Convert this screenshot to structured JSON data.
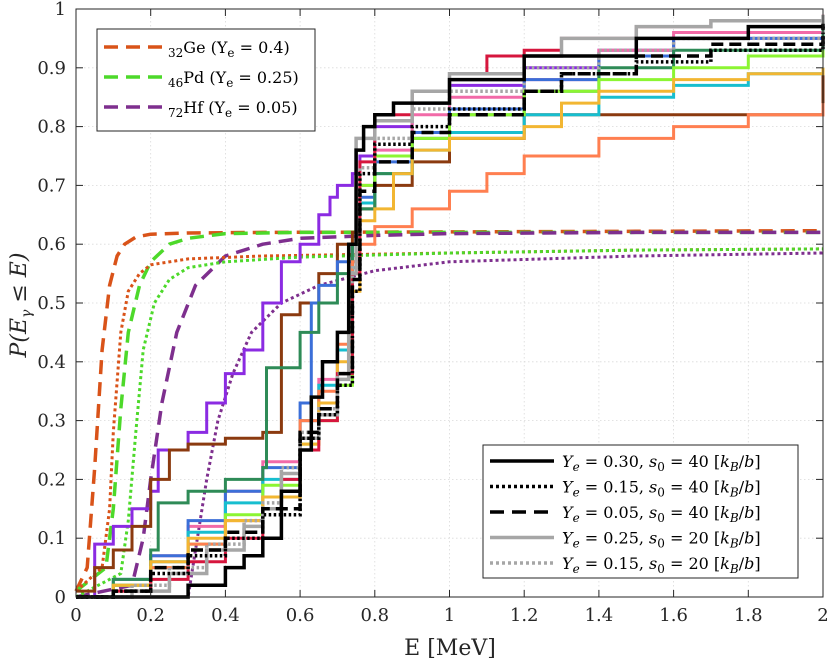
{
  "chart_data": {
    "type": "line",
    "title": "",
    "xlabel": "E [MeV]",
    "ylabel": "P(E_γ ≤ E)",
    "ylabel_parts": {
      "prefix": "P(E",
      "sub": "γ",
      "suffix": " ≤ E)"
    },
    "xlim": [
      0,
      2
    ],
    "ylim": [
      0,
      1
    ],
    "grid": true,
    "xticks": [
      0,
      0.2,
      0.4,
      0.6,
      0.8,
      1,
      1.2,
      1.4,
      1.6,
      1.8,
      2
    ],
    "xtick_labels": [
      "0",
      "0.2",
      "0.4",
      "0.6",
      "0.8",
      "1",
      "1.2",
      "1.4",
      "1.6",
      "1.8",
      "2"
    ],
    "yticks": [
      0,
      0.1,
      0.2,
      0.3,
      0.4,
      0.5,
      0.6,
      0.7,
      0.8,
      0.9,
      1
    ],
    "ytick_labels": [
      "0",
      "0.1",
      "0.2",
      "0.3",
      "0.4",
      "0.5",
      "0.6",
      "0.7",
      "0.8",
      "0.9",
      "1"
    ],
    "legends": [
      {
        "placement": "top-left",
        "entries": [
          {
            "sub": "32",
            "name": "Ge (Y",
            "name_sub": "e",
            "rest": " = 0.4)",
            "color": "#d95319",
            "style": "dashed"
          },
          {
            "sub": "46",
            "name": "Pd (Y",
            "name_sub": "e",
            "rest": " = 0.25)",
            "color": "#4dd92a",
            "style": "dashed"
          },
          {
            "sub": "72",
            "name": "Hf (Y",
            "name_sub": "e",
            "rest": " = 0.05)",
            "color": "#7e2f8e",
            "style": "dashed"
          }
        ]
      },
      {
        "placement": "bottom-right",
        "entries": [
          {
            "label": "Y_e = 0.30, s_0 = 40 [k_B/b]",
            "ye": "0.30",
            "s0": "40",
            "color": "#000000",
            "style": "solid"
          },
          {
            "label": "Y_e = 0.15, s_0 = 40 [k_B/b]",
            "ye": "0.15",
            "s0": "40",
            "color": "#000000",
            "style": "dotted"
          },
          {
            "label": "Y_e = 0.05, s_0 = 40 [k_B/b]",
            "ye": "0.05",
            "s0": "40",
            "color": "#000000",
            "style": "dashed"
          },
          {
            "label": "Y_e = 0.25, s_0 = 20 [k_B/b]",
            "ye": "0.25",
            "s0": "20",
            "color": "#a6a6a6",
            "style": "solid"
          },
          {
            "label": "Y_e = 0.15, s_0 = 20 [k_B/b]",
            "ye": "0.15",
            "s0": "20",
            "color": "#a6a6a6",
            "style": "dotted"
          }
        ]
      }
    ],
    "smooth_series": [
      {
        "name": "32Ge dashed",
        "color": "#d95319",
        "style": "dashed",
        "width": 3.5,
        "x": [
          0,
          0.03,
          0.05,
          0.07,
          0.09,
          0.11,
          0.13,
          0.16,
          0.2,
          0.3,
          0.5,
          1,
          1.5,
          2
        ],
        "y": [
          0.01,
          0.05,
          0.22,
          0.42,
          0.53,
          0.58,
          0.6,
          0.612,
          0.617,
          0.619,
          0.62,
          0.621,
          0.622,
          0.623
        ]
      },
      {
        "name": "46Pd dashed",
        "color": "#4dd92a",
        "style": "dashed",
        "width": 3.5,
        "x": [
          0,
          0.08,
          0.1,
          0.12,
          0.14,
          0.17,
          0.2,
          0.25,
          0.3,
          0.4,
          0.6,
          1,
          1.5,
          2
        ],
        "y": [
          0.01,
          0.05,
          0.15,
          0.32,
          0.45,
          0.53,
          0.57,
          0.6,
          0.61,
          0.618,
          0.62,
          0.62,
          0.62,
          0.62
        ]
      },
      {
        "name": "72Hf dashed",
        "color": "#7e2f8e",
        "style": "dashed",
        "width": 3.5,
        "x": [
          0,
          0.15,
          0.18,
          0.2,
          0.23,
          0.27,
          0.32,
          0.4,
          0.5,
          0.6,
          0.8,
          1,
          1.5,
          2
        ],
        "y": [
          0,
          0.02,
          0.1,
          0.2,
          0.33,
          0.45,
          0.53,
          0.58,
          0.6,
          0.61,
          0.615,
          0.618,
          0.62,
          0.62
        ]
      },
      {
        "name": "32Ge dotted",
        "color": "#d95319",
        "style": "dotted",
        "width": 3,
        "x": [
          0,
          0.07,
          0.09,
          0.1,
          0.12,
          0.14,
          0.17,
          0.2,
          0.3,
          0.5,
          1,
          1.5,
          2
        ],
        "y": [
          0.01,
          0.05,
          0.15,
          0.28,
          0.45,
          0.52,
          0.55,
          0.565,
          0.575,
          0.58,
          0.585,
          0.59,
          0.592
        ]
      },
      {
        "name": "46Pd dotted",
        "color": "#4dd92a",
        "style": "dotted",
        "width": 3,
        "x": [
          0,
          0.12,
          0.14,
          0.16,
          0.18,
          0.21,
          0.25,
          0.3,
          0.4,
          0.6,
          1,
          1.5,
          2
        ],
        "y": [
          0,
          0.04,
          0.13,
          0.28,
          0.42,
          0.5,
          0.54,
          0.56,
          0.57,
          0.578,
          0.585,
          0.59,
          0.592
        ]
      },
      {
        "name": "72Hf dotted",
        "color": "#7e2f8e",
        "style": "dotted",
        "width": 3,
        "x": [
          0,
          0.3,
          0.32,
          0.35,
          0.38,
          0.42,
          0.47,
          0.55,
          0.65,
          0.8,
          1,
          1.5,
          2
        ],
        "y": [
          0,
          0,
          0.08,
          0.2,
          0.3,
          0.38,
          0.45,
          0.5,
          0.53,
          0.555,
          0.57,
          0.58,
          0.585
        ]
      }
    ],
    "step_series": [
      {
        "name": "Ye=0.30 s0=40",
        "color": "#000000",
        "style": "solid",
        "width": 3.5,
        "x": [
          0,
          0.2,
          0.3,
          0.4,
          0.45,
          0.5,
          0.55,
          0.6,
          0.63,
          0.66,
          0.7,
          0.73,
          0.75,
          0.77,
          0.8,
          0.85,
          1.0,
          1.2,
          1.5,
          1.8,
          2.0
        ],
        "y": [
          0,
          0,
          0.02,
          0.05,
          0.07,
          0.1,
          0.18,
          0.25,
          0.34,
          0.4,
          0.45,
          0.6,
          0.76,
          0.8,
          0.82,
          0.84,
          0.88,
          0.92,
          0.95,
          0.97,
          0.975
        ]
      },
      {
        "name": "Ye=0.15 s0=40",
        "color": "#000000",
        "style": "dotted",
        "width": 3.5,
        "x": [
          0,
          0.1,
          0.2,
          0.3,
          0.4,
          0.5,
          0.6,
          0.65,
          0.7,
          0.74,
          0.76,
          0.8,
          0.9,
          1.0,
          1.2,
          1.3,
          1.5,
          1.7,
          2.0
        ],
        "y": [
          0,
          0.01,
          0.04,
          0.07,
          0.1,
          0.14,
          0.27,
          0.31,
          0.36,
          0.52,
          0.72,
          0.77,
          0.8,
          0.83,
          0.86,
          0.89,
          0.91,
          0.93,
          0.96
        ]
      },
      {
        "name": "Ye=0.05 s0=40",
        "color": "#000000",
        "style": "dashed",
        "width": 3.5,
        "x": [
          0,
          0.1,
          0.2,
          0.3,
          0.4,
          0.5,
          0.6,
          0.65,
          0.7,
          0.74,
          0.76,
          0.8,
          0.9,
          1.0,
          1.2,
          1.3,
          1.5,
          1.7,
          2.0
        ],
        "y": [
          0,
          0.01,
          0.05,
          0.08,
          0.11,
          0.15,
          0.28,
          0.32,
          0.38,
          0.54,
          0.69,
          0.74,
          0.79,
          0.82,
          0.86,
          0.89,
          0.92,
          0.94,
          0.97
        ]
      },
      {
        "name": "Ye=0.25 s0=20",
        "color": "#a6a6a6",
        "style": "solid",
        "width": 3.5,
        "x": [
          0,
          0.15,
          0.25,
          0.35,
          0.45,
          0.5,
          0.55,
          0.6,
          0.65,
          0.7,
          0.73,
          0.75,
          0.8,
          0.9,
          1.0,
          1.2,
          1.3,
          1.5,
          1.7,
          2.0
        ],
        "y": [
          0,
          0.01,
          0.04,
          0.08,
          0.12,
          0.15,
          0.21,
          0.27,
          0.31,
          0.37,
          0.55,
          0.78,
          0.81,
          0.86,
          0.89,
          0.92,
          0.95,
          0.97,
          0.98,
          0.99
        ]
      },
      {
        "name": "Ye=0.15 s0=20",
        "color": "#a6a6a6",
        "style": "dotted",
        "width": 3.5,
        "x": [
          0,
          0.15,
          0.25,
          0.35,
          0.45,
          0.5,
          0.55,
          0.6,
          0.65,
          0.7,
          0.74,
          0.76,
          0.8,
          0.9,
          1.0,
          1.2,
          1.4,
          1.6,
          2.0
        ],
        "y": [
          0,
          0.02,
          0.05,
          0.09,
          0.13,
          0.16,
          0.22,
          0.28,
          0.32,
          0.38,
          0.56,
          0.73,
          0.78,
          0.83,
          0.86,
          0.9,
          0.93,
          0.95,
          0.98
        ]
      },
      {
        "name": "crimson",
        "color": "#d6163d",
        "style": "solid",
        "width": 3,
        "x": [
          0,
          0.1,
          0.2,
          0.3,
          0.4,
          0.5,
          0.55,
          0.6,
          0.65,
          0.7,
          0.74,
          0.76,
          0.8,
          0.9,
          1.0,
          1.1,
          1.2,
          1.3,
          1.5,
          1.7,
          2.0
        ],
        "y": [
          0,
          0.01,
          0.03,
          0.06,
          0.1,
          0.15,
          0.2,
          0.25,
          0.3,
          0.38,
          0.55,
          0.74,
          0.82,
          0.86,
          0.89,
          0.92,
          0.93,
          0.95,
          0.97,
          0.98,
          0.99
        ]
      },
      {
        "name": "orange-yellow",
        "color": "#f2b632",
        "style": "solid",
        "width": 3,
        "x": [
          0,
          0.1,
          0.2,
          0.3,
          0.4,
          0.5,
          0.6,
          0.65,
          0.7,
          0.74,
          0.76,
          0.8,
          0.85,
          0.9,
          1.0,
          1.2,
          1.3,
          1.4,
          1.6,
          1.8,
          2.0
        ],
        "y": [
          0,
          0.02,
          0.06,
          0.1,
          0.13,
          0.17,
          0.26,
          0.33,
          0.4,
          0.52,
          0.64,
          0.66,
          0.72,
          0.76,
          0.78,
          0.8,
          0.84,
          0.86,
          0.88,
          0.89,
          0.9
        ]
      },
      {
        "name": "salmon",
        "color": "#ff7f50",
        "style": "solid",
        "width": 3,
        "x": [
          0,
          0.1,
          0.2,
          0.3,
          0.4,
          0.5,
          0.6,
          0.65,
          0.7,
          0.74,
          0.76,
          0.8,
          0.9,
          1.0,
          1.1,
          1.2,
          1.4,
          1.6,
          1.8,
          2.0
        ],
        "y": [
          0,
          0.01,
          0.05,
          0.09,
          0.13,
          0.17,
          0.3,
          0.35,
          0.43,
          0.57,
          0.6,
          0.63,
          0.66,
          0.69,
          0.72,
          0.75,
          0.78,
          0.8,
          0.82,
          0.84
        ]
      },
      {
        "name": "lime",
        "color": "#8cf532",
        "style": "solid",
        "width": 3,
        "x": [
          0,
          0.1,
          0.2,
          0.3,
          0.4,
          0.5,
          0.6,
          0.65,
          0.7,
          0.74,
          0.76,
          0.8,
          0.9,
          1.0,
          1.2,
          1.4,
          1.6,
          1.8,
          2.0
        ],
        "y": [
          0,
          0.02,
          0.05,
          0.09,
          0.14,
          0.19,
          0.26,
          0.3,
          0.36,
          0.55,
          0.7,
          0.75,
          0.78,
          0.82,
          0.86,
          0.88,
          0.9,
          0.92,
          0.93
        ]
      },
      {
        "name": "teal-green",
        "color": "#2e8b57",
        "style": "solid",
        "width": 3,
        "x": [
          0,
          0.1,
          0.2,
          0.22,
          0.3,
          0.4,
          0.5,
          0.51,
          0.6,
          0.65,
          0.7,
          0.74,
          0.76,
          0.8,
          0.9,
          1.0,
          1.2,
          1.4,
          1.6,
          2.0
        ],
        "y": [
          0,
          0.03,
          0.08,
          0.16,
          0.18,
          0.2,
          0.22,
          0.39,
          0.45,
          0.5,
          0.55,
          0.6,
          0.66,
          0.72,
          0.78,
          0.82,
          0.86,
          0.9,
          0.93,
          0.98
        ]
      },
      {
        "name": "cyan",
        "color": "#17becf",
        "style": "solid",
        "width": 3,
        "x": [
          0,
          0.1,
          0.2,
          0.3,
          0.4,
          0.5,
          0.6,
          0.65,
          0.7,
          0.74,
          0.76,
          0.8,
          0.9,
          1.0,
          1.2,
          1.4,
          1.6,
          1.8,
          2.0
        ],
        "y": [
          0,
          0.02,
          0.06,
          0.11,
          0.16,
          0.2,
          0.3,
          0.36,
          0.42,
          0.56,
          0.67,
          0.72,
          0.76,
          0.79,
          0.82,
          0.85,
          0.87,
          0.89,
          0.9
        ]
      },
      {
        "name": "blue",
        "color": "#3b6fd8",
        "style": "solid",
        "width": 3,
        "x": [
          0,
          0.1,
          0.2,
          0.3,
          0.4,
          0.5,
          0.6,
          0.63,
          0.65,
          0.7,
          0.74,
          0.76,
          0.8,
          0.9,
          1.0,
          1.2,
          1.4,
          1.6,
          2.0
        ],
        "y": [
          0,
          0.03,
          0.07,
          0.13,
          0.18,
          0.22,
          0.33,
          0.5,
          0.53,
          0.57,
          0.6,
          0.68,
          0.74,
          0.79,
          0.83,
          0.88,
          0.92,
          0.95,
          0.98
        ]
      },
      {
        "name": "pink",
        "color": "#f26aa8",
        "style": "solid",
        "width": 3,
        "x": [
          0,
          0.1,
          0.2,
          0.3,
          0.4,
          0.5,
          0.6,
          0.65,
          0.7,
          0.74,
          0.76,
          0.8,
          0.9,
          1.0,
          1.2,
          1.4,
          1.6,
          2.0
        ],
        "y": [
          0,
          0.02,
          0.07,
          0.12,
          0.18,
          0.23,
          0.3,
          0.37,
          0.42,
          0.57,
          0.7,
          0.76,
          0.82,
          0.85,
          0.88,
          0.93,
          0.96,
          0.99
        ]
      },
      {
        "name": "brown",
        "color": "#8b3a0f",
        "style": "solid",
        "width": 3,
        "x": [
          0,
          0.05,
          0.1,
          0.15,
          0.2,
          0.25,
          0.3,
          0.4,
          0.5,
          0.55,
          0.6,
          0.65,
          0.7,
          0.74,
          0.76,
          0.8,
          0.9,
          1.0,
          1.2,
          2.0
        ],
        "y": [
          0.01,
          0.05,
          0.08,
          0.12,
          0.2,
          0.25,
          0.26,
          0.27,
          0.28,
          0.48,
          0.5,
          0.55,
          0.6,
          0.62,
          0.66,
          0.7,
          0.74,
          0.78,
          0.82,
          0.9
        ]
      },
      {
        "name": "purple",
        "color": "#8b2be2",
        "style": "solid",
        "width": 3,
        "x": [
          0,
          0.05,
          0.1,
          0.15,
          0.2,
          0.22,
          0.3,
          0.35,
          0.4,
          0.45,
          0.5,
          0.55,
          0.6,
          0.65,
          0.68,
          0.7,
          0.74,
          0.76,
          0.8,
          0.9,
          1.0,
          1.2,
          1.4,
          1.6,
          2.0
        ],
        "y": [
          0,
          0.09,
          0.12,
          0.15,
          0.18,
          0.25,
          0.28,
          0.33,
          0.38,
          0.42,
          0.5,
          0.57,
          0.6,
          0.65,
          0.68,
          0.7,
          0.72,
          0.75,
          0.8,
          0.84,
          0.87,
          0.9,
          0.93,
          0.95,
          0.98
        ]
      }
    ]
  }
}
